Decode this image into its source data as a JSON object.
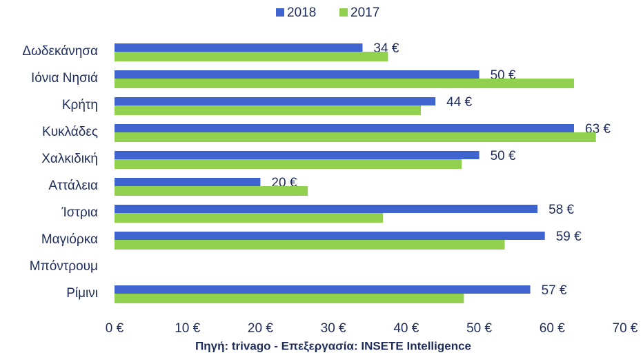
{
  "chart_data": {
    "type": "bar",
    "orientation": "horizontal",
    "categories": [
      "Δωδεκάνησα",
      "Ιόνια Νησιά",
      "Κρήτη",
      "Κυκλάδες",
      "Χαλκιδική",
      "Αττάλεια",
      "Ίστρια",
      "Μαγιόρκα",
      "Μπόντρουμ",
      "Ρίμινι"
    ],
    "series": [
      {
        "name": "2018",
        "color": "#3f63cf",
        "values": [
          34,
          50,
          44,
          63,
          50,
          20,
          58,
          59,
          null,
          57
        ],
        "value_labels": [
          "34 €",
          "50 €",
          "44 €",
          "63 €",
          "50 €",
          "20 €",
          "58 €",
          "59 €",
          null,
          "57 €"
        ]
      },
      {
        "name": "2017",
        "color": "#92d050",
        "values": [
          37.5,
          63,
          42,
          66,
          47.6,
          26.5,
          36.8,
          53.5,
          null,
          47.9
        ]
      }
    ],
    "xlim": [
      0,
      70
    ],
    "xticks": [
      {
        "value": 0,
        "label": "0 €"
      },
      {
        "value": 10,
        "label": "10 €"
      },
      {
        "value": 20,
        "label": "20 €"
      },
      {
        "value": 30,
        "label": "30 €"
      },
      {
        "value": 40,
        "label": "40 €"
      },
      {
        "value": 50,
        "label": "50 €"
      },
      {
        "value": 60,
        "label": "60 €"
      },
      {
        "value": 70,
        "label": "70 €"
      }
    ],
    "source": "Πηγή: trivago - Επεξεργασία: INSETE Intelligence",
    "legend": "top",
    "grid": false
  }
}
